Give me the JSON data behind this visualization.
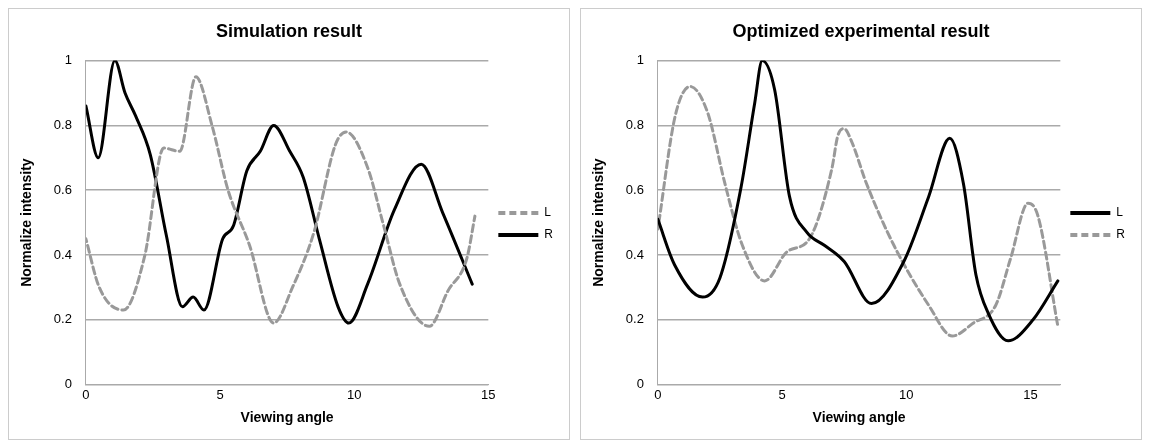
{
  "chart_data": [
    {
      "type": "line",
      "title": "Simulation result",
      "xlabel": "Viewing angle",
      "ylabel": "Normalize intensity",
      "xlim": [
        0,
        15
      ],
      "xticks": [
        0,
        5,
        10,
        15
      ],
      "ylim": [
        0,
        1
      ],
      "yticks": [
        0,
        0.2,
        0.4,
        0.6,
        0.8,
        1
      ],
      "grid": "y",
      "legend": "right",
      "marker": "none",
      "series": [
        {
          "name": "L",
          "color": "#999999",
          "line_style": "dashed",
          "x": [
            0,
            0.5,
            1.4,
            2.2,
            2.9,
            3.5,
            4.1,
            4.7,
            5.3,
            6.1,
            7.0,
            7.7,
            8.5,
            9.3,
            9.7,
            10.5,
            11.1,
            11.7,
            12.8,
            13.5,
            14.2,
            14.5
          ],
          "values": [
            0.45,
            0.3,
            0.23,
            0.4,
            0.73,
            0.72,
            0.95,
            0.8,
            0.6,
            0.43,
            0.19,
            0.3,
            0.47,
            0.74,
            0.78,
            0.67,
            0.49,
            0.31,
            0.18,
            0.29,
            0.39,
            0.52
          ]
        },
        {
          "name": "R",
          "color": "#000000",
          "line_style": "solid",
          "x": [
            0,
            0.46,
            1.08,
            1.46,
            1.85,
            2.4,
            3.0,
            3.6,
            4.0,
            4.4,
            5.1,
            5.5,
            6.0,
            6.5,
            7.0,
            7.6,
            8.1,
            8.7,
            9.4,
            9.8,
            10.5,
            11.5,
            12.5,
            13.3,
            14.4
          ],
          "values": [
            0.86,
            0.7,
            1.0,
            0.9,
            0.83,
            0.71,
            0.46,
            0.24,
            0.27,
            0.23,
            0.45,
            0.49,
            0.66,
            0.72,
            0.8,
            0.72,
            0.64,
            0.45,
            0.24,
            0.19,
            0.31,
            0.54,
            0.68,
            0.53,
            0.31
          ]
        }
      ]
    },
    {
      "type": "line",
      "title": "Optimized experimental result",
      "xlabel": "Viewing angle",
      "ylabel": "Normalize intensity",
      "xlim": [
        0,
        16.2
      ],
      "xticks": [
        0,
        5,
        10,
        15
      ],
      "ylim": [
        0,
        1
      ],
      "yticks": [
        0,
        0.2,
        0.4,
        0.6,
        0.8,
        1
      ],
      "grid": "y",
      "legend": "right",
      "marker": "none",
      "series": [
        {
          "name": "L",
          "color": "#000000",
          "line_style": "solid",
          "x": [
            0,
            0.67,
            1.8,
            2.5,
            3.35,
            3.9,
            4.2,
            4.7,
            5.3,
            6.0,
            6.7,
            7.5,
            8.6,
            9.9,
            10.9,
            11.75,
            12.3,
            12.8,
            13.3,
            14.1,
            15.1,
            16.1
          ],
          "values": [
            0.51,
            0.37,
            0.27,
            0.33,
            0.61,
            0.87,
            1.0,
            0.91,
            0.58,
            0.47,
            0.43,
            0.38,
            0.25,
            0.38,
            0.58,
            0.76,
            0.62,
            0.34,
            0.22,
            0.135,
            0.2,
            0.32
          ]
        },
        {
          "name": "R",
          "color": "#999999",
          "line_style": "dashed",
          "x": [
            0,
            0.7,
            1.3,
            2.0,
            2.7,
            3.4,
            4.3,
            5.2,
            6.1,
            7.0,
            7.25,
            7.5,
            7.8,
            8.4,
            9.5,
            10.9,
            11.85,
            12.7,
            13.6,
            14.2,
            14.9,
            15.3,
            16.1
          ],
          "values": [
            0.48,
            0.83,
            0.92,
            0.84,
            0.62,
            0.43,
            0.32,
            0.41,
            0.45,
            0.665,
            0.77,
            0.79,
            0.75,
            0.62,
            0.43,
            0.245,
            0.15,
            0.19,
            0.245,
            0.39,
            0.56,
            0.52,
            0.18
          ]
        }
      ]
    }
  ]
}
